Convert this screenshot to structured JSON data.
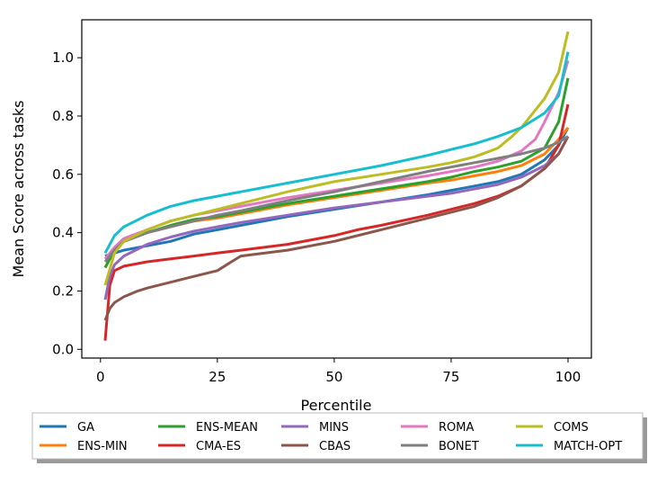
{
  "chart_data": {
    "type": "line",
    "title": "",
    "xlabel": "Percentile",
    "ylabel": "Mean Score across tasks",
    "xlim": [
      -4,
      105
    ],
    "ylim": [
      -0.03,
      1.13
    ],
    "xticks": [
      0,
      25,
      50,
      75,
      100
    ],
    "xtick_labels": [
      "0",
      "25",
      "50",
      "75",
      "100"
    ],
    "yticks": [
      0.0,
      0.2,
      0.4,
      0.6,
      0.8,
      1.0
    ],
    "ytick_labels": [
      "0.0",
      "0.2",
      "0.4",
      "0.6",
      "0.8",
      "1.0"
    ],
    "grid": false,
    "legend_placement": "below",
    "series": [
      {
        "name": "GA",
        "color": "#1f77b4",
        "x": [
          1,
          3,
          5,
          10,
          15,
          20,
          25,
          30,
          40,
          50,
          60,
          70,
          75,
          80,
          85,
          90,
          95,
          98,
          100
        ],
        "y": [
          0.32,
          0.33,
          0.34,
          0.355,
          0.37,
          0.395,
          0.41,
          0.425,
          0.455,
          0.48,
          0.505,
          0.53,
          0.545,
          0.56,
          0.575,
          0.6,
          0.65,
          0.7,
          0.76
        ]
      },
      {
        "name": "ENS-MIN",
        "color": "#ff7f0e",
        "x": [
          1,
          3,
          5,
          10,
          15,
          20,
          25,
          30,
          40,
          50,
          60,
          70,
          75,
          80,
          85,
          90,
          95,
          98,
          100
        ],
        "y": [
          0.28,
          0.34,
          0.37,
          0.4,
          0.42,
          0.44,
          0.45,
          0.465,
          0.495,
          0.52,
          0.545,
          0.57,
          0.58,
          0.595,
          0.61,
          0.63,
          0.67,
          0.72,
          0.76
        ]
      },
      {
        "name": "ENS-MEAN",
        "color": "#2ca02c",
        "x": [
          1,
          3,
          5,
          10,
          15,
          20,
          25,
          30,
          40,
          50,
          60,
          70,
          75,
          80,
          85,
          90,
          95,
          98,
          100
        ],
        "y": [
          0.28,
          0.34,
          0.37,
          0.4,
          0.425,
          0.445,
          0.455,
          0.47,
          0.5,
          0.525,
          0.55,
          0.575,
          0.59,
          0.61,
          0.625,
          0.645,
          0.69,
          0.78,
          0.93
        ]
      },
      {
        "name": "CMA-ES",
        "color": "#d62728",
        "x": [
          1,
          2,
          3,
          5,
          10,
          15,
          20,
          25,
          30,
          40,
          50,
          55,
          60,
          70,
          75,
          80,
          85,
          90,
          95,
          98,
          100
        ],
        "y": [
          0.03,
          0.22,
          0.27,
          0.285,
          0.3,
          0.31,
          0.32,
          0.33,
          0.34,
          0.36,
          0.39,
          0.41,
          0.425,
          0.46,
          0.48,
          0.5,
          0.525,
          0.56,
          0.62,
          0.7,
          0.84
        ]
      },
      {
        "name": "MINS",
        "color": "#9467bd",
        "x": [
          1,
          2,
          3,
          5,
          10,
          15,
          20,
          25,
          30,
          40,
          50,
          60,
          70,
          75,
          80,
          85,
          90,
          95,
          98,
          100
        ],
        "y": [
          0.17,
          0.25,
          0.29,
          0.32,
          0.36,
          0.385,
          0.405,
          0.42,
          0.435,
          0.46,
          0.485,
          0.505,
          0.525,
          0.535,
          0.55,
          0.565,
          0.59,
          0.63,
          0.67,
          0.73
        ]
      },
      {
        "name": "CBAS",
        "color": "#8c564b",
        "x": [
          1,
          2,
          3,
          5,
          8,
          10,
          15,
          20,
          25,
          28,
          30,
          40,
          50,
          60,
          70,
          75,
          80,
          85,
          90,
          95,
          98,
          100
        ],
        "y": [
          0.1,
          0.14,
          0.16,
          0.18,
          0.2,
          0.21,
          0.23,
          0.25,
          0.27,
          0.3,
          0.32,
          0.34,
          0.37,
          0.41,
          0.45,
          0.47,
          0.49,
          0.52,
          0.56,
          0.62,
          0.67,
          0.73
        ]
      },
      {
        "name": "ROMA",
        "color": "#e377c2",
        "x": [
          1,
          3,
          5,
          10,
          15,
          20,
          25,
          30,
          40,
          50,
          60,
          70,
          75,
          80,
          85,
          90,
          93,
          95,
          98,
          100
        ],
        "y": [
          0.31,
          0.35,
          0.38,
          0.41,
          0.44,
          0.46,
          0.475,
          0.49,
          0.52,
          0.545,
          0.57,
          0.595,
          0.61,
          0.625,
          0.645,
          0.68,
          0.72,
          0.78,
          0.88,
          0.99
        ]
      },
      {
        "name": "BONET",
        "color": "#7f7f7f",
        "x": [
          1,
          3,
          5,
          10,
          15,
          20,
          25,
          30,
          40,
          50,
          60,
          70,
          75,
          80,
          85,
          90,
          95,
          98,
          100
        ],
        "y": [
          0.3,
          0.34,
          0.37,
          0.4,
          0.42,
          0.44,
          0.46,
          0.475,
          0.51,
          0.54,
          0.575,
          0.61,
          0.625,
          0.64,
          0.655,
          0.67,
          0.69,
          0.71,
          0.73
        ]
      },
      {
        "name": "COMS",
        "color": "#bcbd22",
        "x": [
          1,
          3,
          5,
          10,
          15,
          20,
          25,
          30,
          40,
          50,
          60,
          70,
          75,
          80,
          85,
          88,
          90,
          95,
          98,
          100
        ],
        "y": [
          0.22,
          0.33,
          0.37,
          0.41,
          0.44,
          0.46,
          0.48,
          0.5,
          0.54,
          0.575,
          0.6,
          0.625,
          0.64,
          0.66,
          0.69,
          0.73,
          0.76,
          0.86,
          0.95,
          1.09
        ]
      },
      {
        "name": "MATCH-OPT",
        "color": "#17becf",
        "x": [
          1,
          3,
          5,
          10,
          15,
          20,
          25,
          30,
          40,
          50,
          60,
          70,
          75,
          80,
          85,
          90,
          95,
          98,
          100
        ],
        "y": [
          0.33,
          0.39,
          0.42,
          0.46,
          0.49,
          0.51,
          0.525,
          0.54,
          0.57,
          0.6,
          0.63,
          0.665,
          0.685,
          0.705,
          0.73,
          0.76,
          0.81,
          0.87,
          1.02
        ]
      }
    ]
  }
}
